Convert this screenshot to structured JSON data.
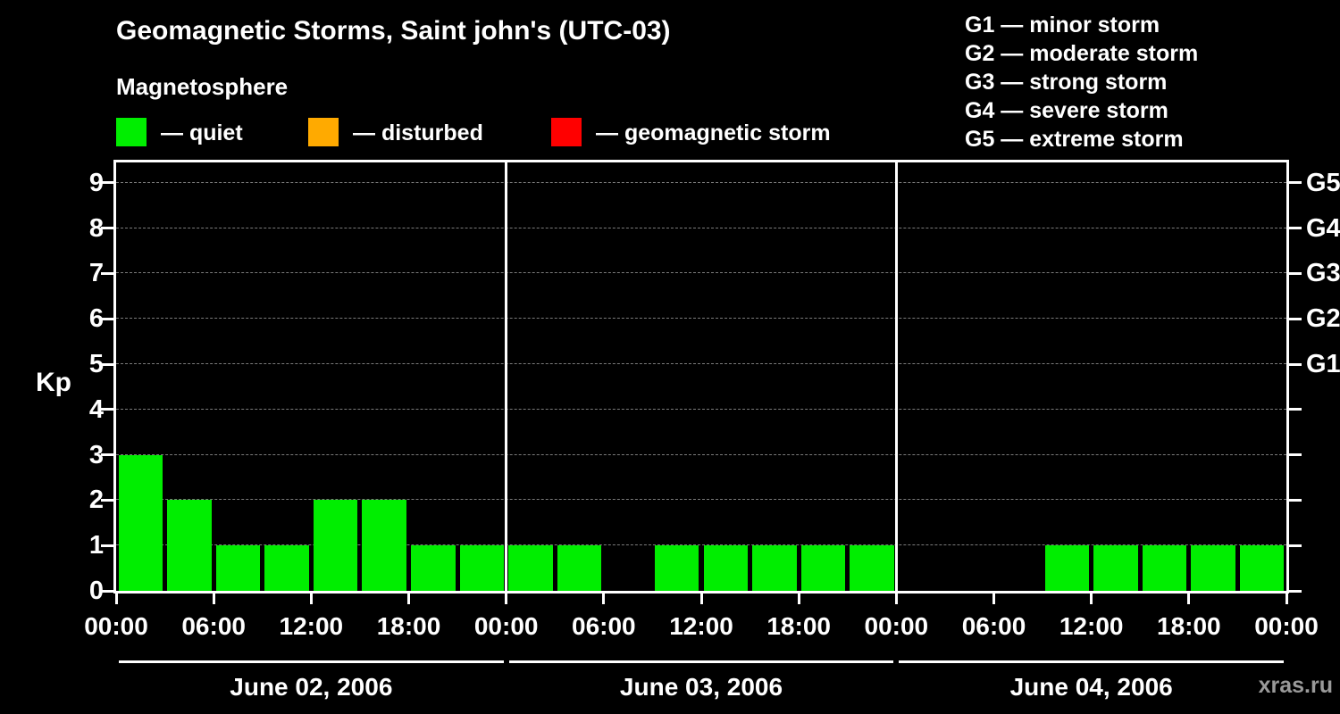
{
  "header": {
    "title": "Geomagnetic Storms, Saint john's (UTC-03)",
    "subtitle": "Magnetosphere"
  },
  "legend": {
    "items": [
      {
        "label": "— quiet",
        "color": "#00ee00"
      },
      {
        "label": "— disturbed",
        "color": "#ffaa00"
      },
      {
        "label": "— geomagnetic storm",
        "color": "#ff0000"
      }
    ]
  },
  "g_legend": [
    "G1 — minor storm",
    "G2 — moderate storm",
    "G3 — strong storm",
    "G4 — severe storm",
    "G5 — extreme storm"
  ],
  "watermark": "xras.ru",
  "chart_data": {
    "type": "bar",
    "title": "Geomagnetic Storms, Saint john's (UTC-03)",
    "ylabel": "Kp",
    "ylim": [
      0,
      9.45
    ],
    "yticks": [
      0,
      1,
      2,
      3,
      4,
      5,
      6,
      7,
      8,
      9
    ],
    "right_axis_labels": [
      {
        "value": 5,
        "label": "G1"
      },
      {
        "value": 6,
        "label": "G2"
      },
      {
        "value": 7,
        "label": "G3"
      },
      {
        "value": 8,
        "label": "G4"
      },
      {
        "value": 9,
        "label": "G5"
      }
    ],
    "grid": true,
    "legend_position": "top",
    "bar_color": "#00ee00",
    "hours_per_bar": 3,
    "x_tick_hour_labels": [
      "00:00",
      "06:00",
      "12:00",
      "18:00"
    ],
    "x_axis_final_label": "00:00",
    "days": [
      {
        "date": "June 02, 2006",
        "values": [
          3,
          2,
          1,
          1,
          2,
          2,
          1,
          1
        ]
      },
      {
        "date": "June 03, 2006",
        "values": [
          1,
          1,
          0,
          1,
          1,
          1,
          1,
          1
        ]
      },
      {
        "date": "June 04, 2006",
        "values": [
          0,
          0,
          0,
          1,
          1,
          1,
          1,
          1
        ]
      }
    ]
  }
}
